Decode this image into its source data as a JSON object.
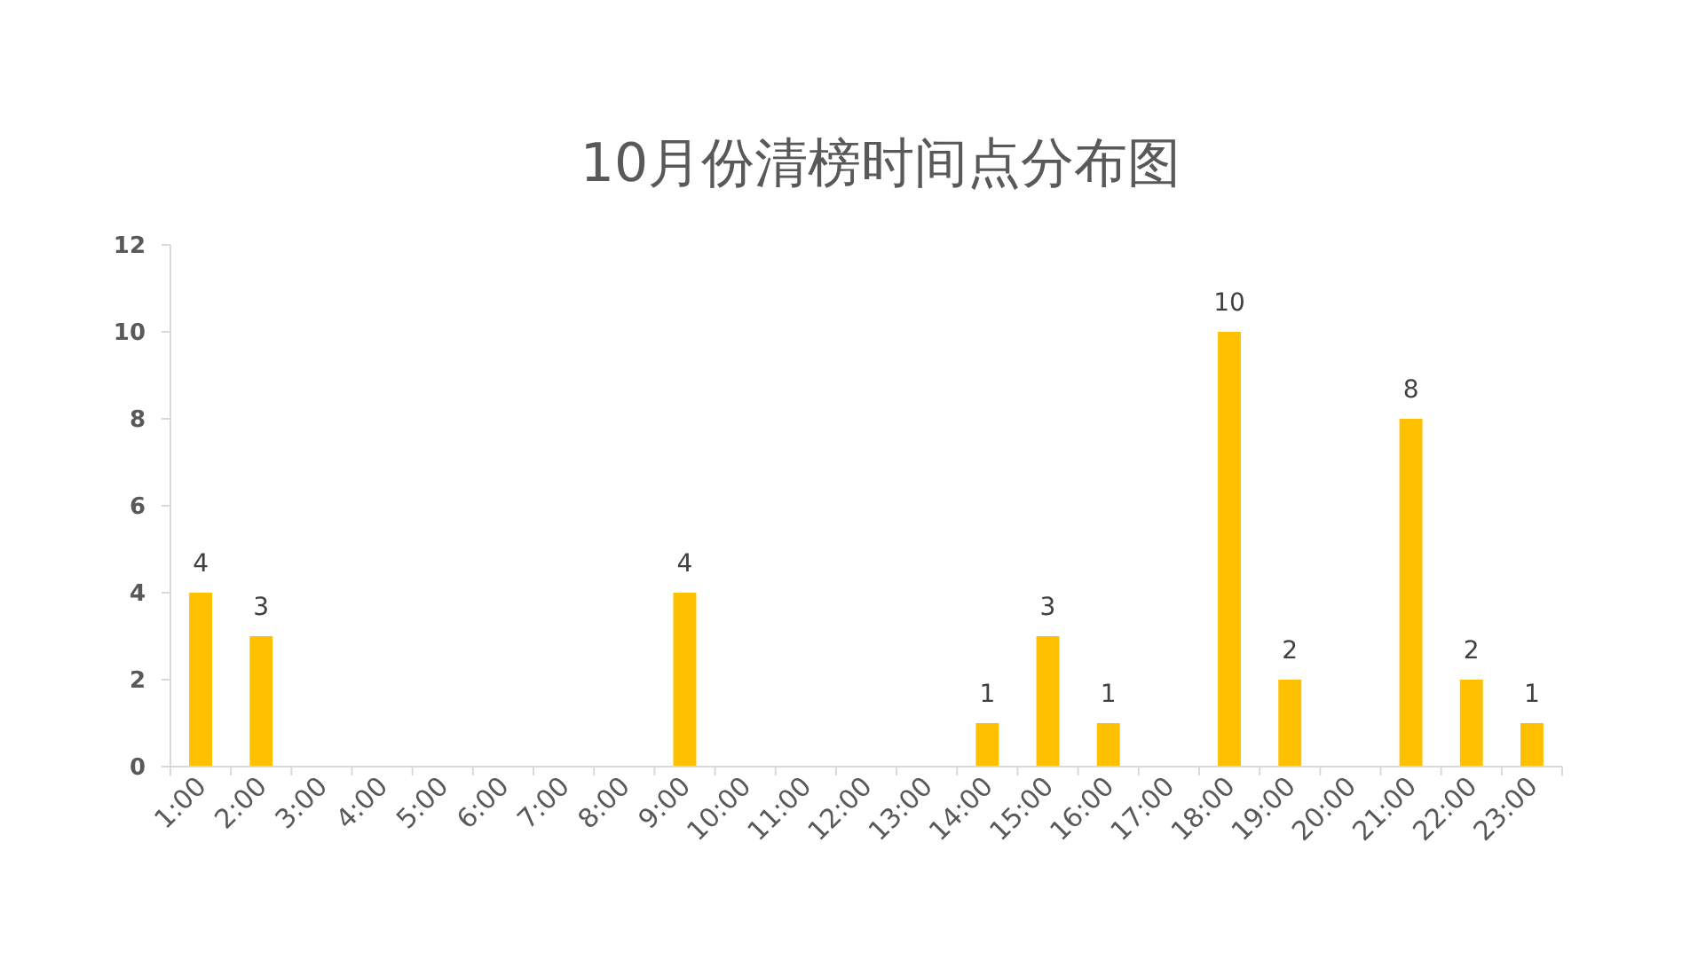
{
  "chart_data": {
    "type": "bar",
    "title": "10月份清榜时间点分布图",
    "categories": [
      "1:00",
      "2:00",
      "3:00",
      "4:00",
      "5:00",
      "6:00",
      "7:00",
      "8:00",
      "9:00",
      "10:00",
      "11:00",
      "12:00",
      "13:00",
      "14:00",
      "15:00",
      "16:00",
      "17:00",
      "18:00",
      "19:00",
      "20:00",
      "21:00",
      "22:00",
      "23:00"
    ],
    "values": [
      4,
      3,
      0,
      0,
      0,
      0,
      0,
      0,
      4,
      0,
      0,
      0,
      0,
      1,
      3,
      1,
      0,
      10,
      2,
      0,
      8,
      2,
      1
    ],
    "value_labels": [
      "4",
      "3",
      null,
      null,
      null,
      null,
      null,
      null,
      "4",
      null,
      null,
      null,
      null,
      "1",
      "3",
      "1",
      null,
      "10",
      "2",
      null,
      "8",
      "2",
      "1"
    ],
    "color": "#ffc000",
    "ylim": [
      0,
      12
    ],
    "yticks": [
      0,
      2,
      4,
      6,
      8,
      10,
      12
    ],
    "grid": false
  }
}
